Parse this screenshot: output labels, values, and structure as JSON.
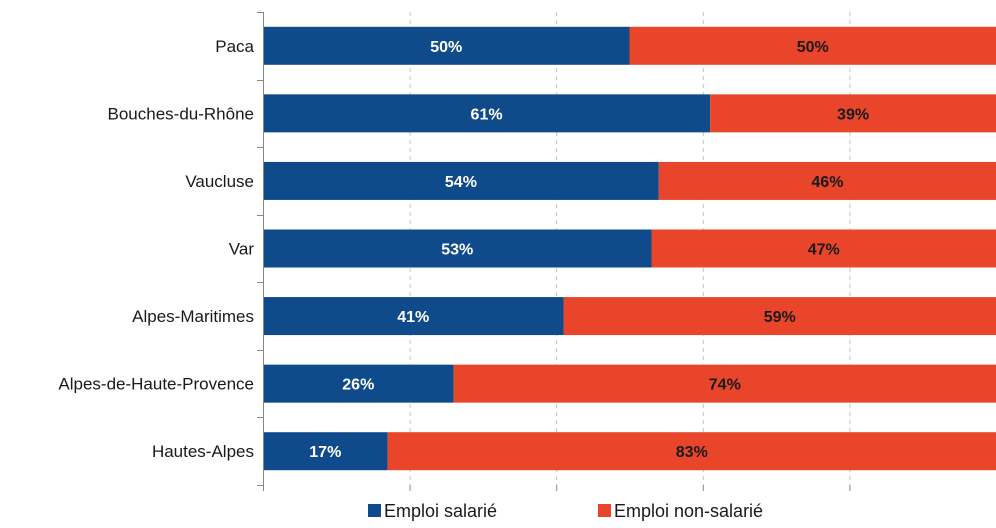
{
  "chart_data": {
    "type": "bar",
    "stacked": true,
    "orientation": "horizontal",
    "categories": [
      "Paca",
      "Bouches-du-Rhône",
      "Vaucluse",
      "Var",
      "Alpes-Maritimes",
      "Alpes-de-Haute-Provence",
      "Hautes-Alpes"
    ],
    "series": [
      {
        "name": "Emploi salarié",
        "color": "#0f4a8a",
        "label_color": "#ffffff",
        "values": [
          50,
          61,
          54,
          53,
          41,
          26,
          17
        ],
        "labels": [
          "50%",
          "61%",
          "54%",
          "53%",
          "41%",
          "26%",
          "17%"
        ]
      },
      {
        "name": "Emploi non-salarié",
        "color": "#e8452a",
        "label_color": "#1a1a1a",
        "values": [
          50,
          39,
          46,
          47,
          59,
          74,
          83
        ],
        "labels": [
          "50%",
          "39%",
          "46%",
          "47%",
          "59%",
          "74%",
          "83%"
        ]
      }
    ],
    "xlim": [
      0,
      100
    ],
    "grid": true,
    "grid_style": "dashed",
    "legend_position": "bottom"
  }
}
